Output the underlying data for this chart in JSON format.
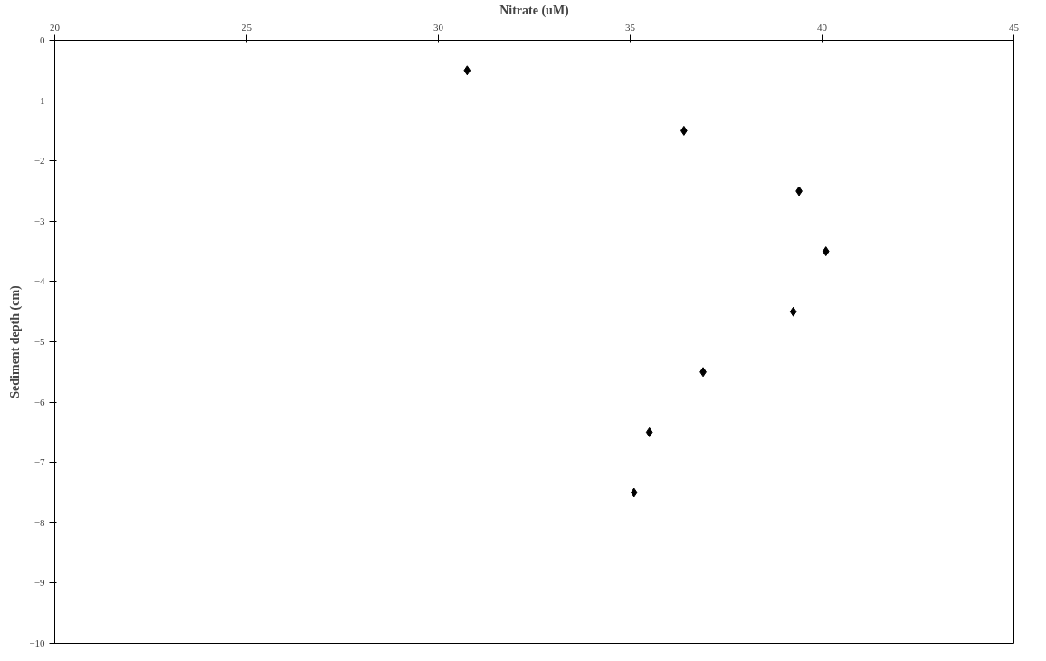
{
  "chart_data": {
    "type": "scatter",
    "xlabel": "Nitrate (uM)",
    "ylabel": "Sediment depth (cm)",
    "x": [
      30.75,
      36.4,
      39.4,
      40.1,
      39.25,
      36.9,
      35.5,
      35.1
    ],
    "values": [
      -0.5,
      -1.5,
      -2.5,
      -3.5,
      -4.5,
      -5.5,
      -6.5,
      -7.5
    ],
    "color": "#000000",
    "marker": "diamond",
    "grid": false,
    "xlim": [
      20,
      45
    ],
    "xticks": [
      20,
      25,
      30,
      35,
      40,
      45
    ],
    "ylim": [
      -10,
      0
    ],
    "yticks": [
      0,
      -1,
      -2,
      -3,
      -4,
      -5,
      -6,
      -7,
      -8,
      -9,
      -10
    ]
  }
}
